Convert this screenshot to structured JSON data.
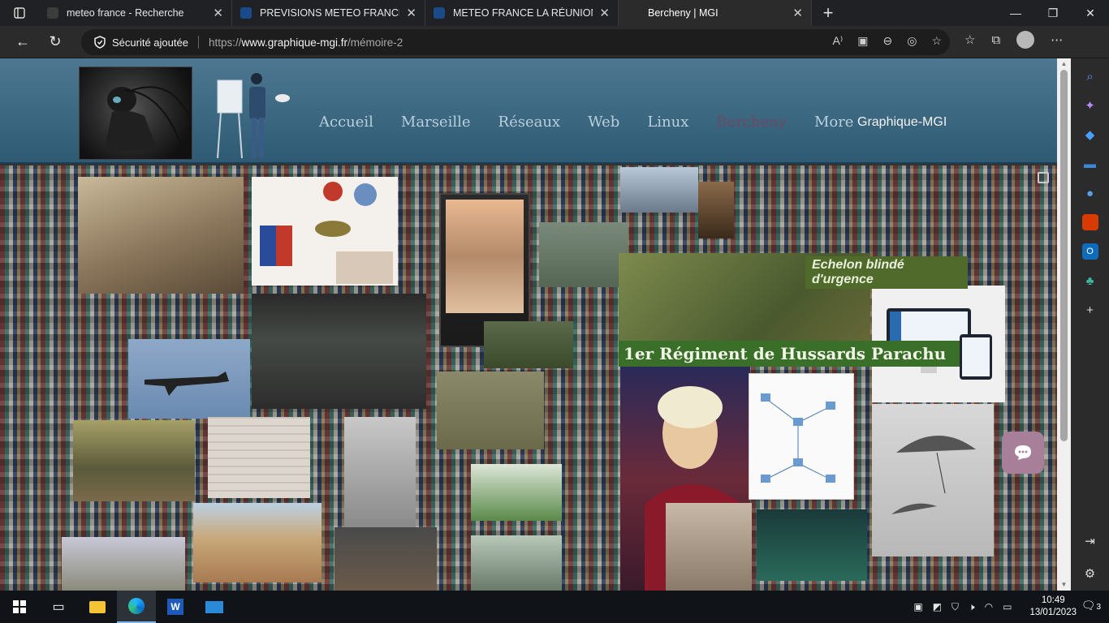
{
  "browser": {
    "tabs": [
      {
        "title": "meteo france - Recherche",
        "fav_color": "#3c3c3c"
      },
      {
        "title": "PREVISIONS METEO FRANCE - Si",
        "fav_color": "#1a4a8a"
      },
      {
        "title": "METEO FRANCE LA RÉUNION pa",
        "fav_color": "#1a4a8a"
      },
      {
        "title": "Bercheny | MGI",
        "fav_color": "#2b2b2b"
      }
    ],
    "security_label": "Sécurité ajoutée",
    "url_prefix": "https://",
    "url_host": "www.graphique-mgi.fr",
    "url_path": "/mémoire-2"
  },
  "site": {
    "nav": [
      "Accueil",
      "Marseille",
      "Réseaux",
      "Web",
      "Linux",
      "Bercheny",
      "More"
    ],
    "current": "Bercheny",
    "brand": "Graphique-MGI",
    "banner_top": "Echelon blindé d'urgence",
    "banner_bottom": "1er Régiment de Hussards Parachu"
  },
  "taskbar": {
    "time": "10:49",
    "date": "13/01/2023",
    "notifications": "3"
  }
}
